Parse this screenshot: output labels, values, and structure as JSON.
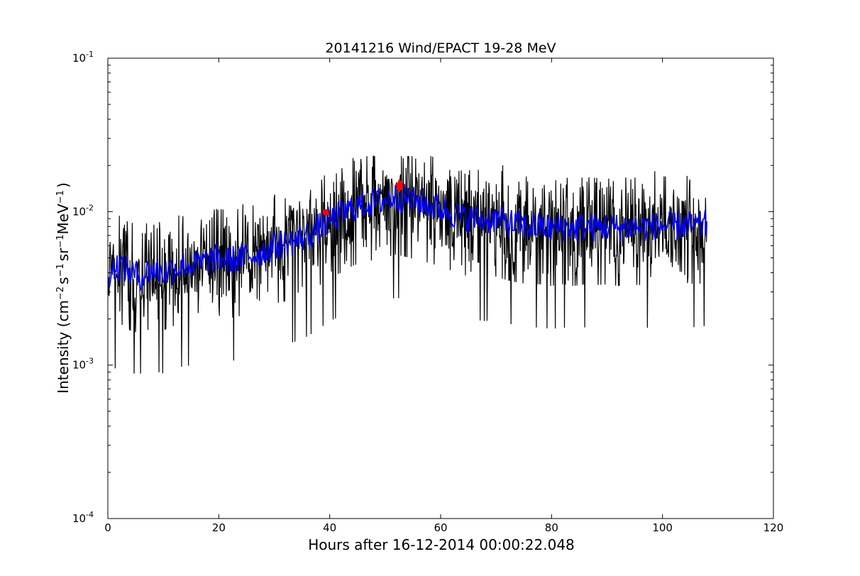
{
  "chart_data": {
    "type": "line",
    "title": "20141216 Wind/EPACT 19-28 MeV",
    "xlabel": "Hours after 16-12-2014 00:00:22.048",
    "ylabel": {
      "prefix": "Intensity (cm",
      "exp1": "−2",
      "s": "s",
      "exp2": "−1",
      "sr": "sr",
      "exp3": "−1",
      "mev": "MeV",
      "exp4": "−1",
      "suffix": ")"
    },
    "xlim": [
      0,
      120
    ],
    "ylim": [
      0.0001,
      0.1
    ],
    "yscale": "log",
    "grid": false,
    "x_ticks": [
      {
        "value": 0,
        "label": "0"
      },
      {
        "value": 20,
        "label": "20"
      },
      {
        "value": 40,
        "label": "40"
      },
      {
        "value": 60,
        "label": "60"
      },
      {
        "value": 80,
        "label": "80"
      },
      {
        "value": 100,
        "label": "100"
      },
      {
        "value": 120,
        "label": "120"
      }
    ],
    "y_ticks": [
      {
        "value": 0.0001,
        "base": "10",
        "exp": "-4"
      },
      {
        "value": 0.001,
        "base": "10",
        "exp": "-3"
      },
      {
        "value": 0.01,
        "base": "10",
        "exp": "-2"
      },
      {
        "value": 0.1,
        "base": "10",
        "exp": "-1"
      }
    ],
    "series": [
      {
        "color": "#000000",
        "style": "noisy raw intensity",
        "x": [
          0,
          2,
          4,
          6,
          8,
          10,
          12,
          14,
          16,
          18,
          20,
          22,
          24,
          26,
          28,
          30,
          32,
          34,
          36,
          38,
          40,
          42,
          44,
          46,
          48,
          50,
          52,
          54,
          56,
          58,
          60,
          62,
          64,
          66,
          68,
          70,
          72,
          74,
          76,
          78,
          80,
          82,
          84,
          86,
          88,
          90,
          92,
          94,
          96,
          98,
          100,
          102,
          104,
          106,
          108
        ],
        "y": [
          0.004,
          0.0045,
          0.004,
          0.0038,
          0.0042,
          0.004,
          0.0043,
          0.0045,
          0.0045,
          0.0048,
          0.005,
          0.0048,
          0.005,
          0.0052,
          0.0055,
          0.006,
          0.0062,
          0.0065,
          0.007,
          0.0078,
          0.0088,
          0.0095,
          0.0105,
          0.0112,
          0.0115,
          0.012,
          0.0125,
          0.012,
          0.0115,
          0.011,
          0.0105,
          0.0098,
          0.0092,
          0.009,
          0.0088,
          0.009,
          0.0085,
          0.0082,
          0.008,
          0.008,
          0.0078,
          0.008,
          0.0078,
          0.008,
          0.0079,
          0.008,
          0.0078,
          0.008,
          0.0079,
          0.008,
          0.0081,
          0.008,
          0.0082,
          0.008,
          0.0082
        ],
        "min_y": 0.00088,
        "max_y": 0.023
      },
      {
        "color": "#0000ff",
        "style": "smoothed intensity",
        "x": [
          0,
          2,
          4,
          6,
          8,
          10,
          12,
          14,
          16,
          18,
          20,
          22,
          24,
          26,
          28,
          30,
          32,
          34,
          36,
          38,
          40,
          42,
          44,
          46,
          48,
          50,
          52,
          54,
          56,
          58,
          60,
          62,
          64,
          66,
          68,
          70,
          72,
          74,
          76,
          78,
          80,
          82,
          84,
          86,
          88,
          90,
          92,
          94,
          96,
          98,
          100,
          102,
          104,
          106,
          108
        ],
        "y": [
          0.004,
          0.0045,
          0.004,
          0.0038,
          0.0042,
          0.004,
          0.0043,
          0.0045,
          0.0045,
          0.0048,
          0.005,
          0.0048,
          0.005,
          0.0052,
          0.0055,
          0.006,
          0.0062,
          0.0065,
          0.007,
          0.0078,
          0.0088,
          0.0095,
          0.0105,
          0.0112,
          0.0115,
          0.012,
          0.0125,
          0.012,
          0.0115,
          0.011,
          0.0105,
          0.0098,
          0.0092,
          0.009,
          0.0088,
          0.009,
          0.0085,
          0.0082,
          0.008,
          0.008,
          0.0078,
          0.008,
          0.0078,
          0.008,
          0.0079,
          0.008,
          0.0078,
          0.008,
          0.0079,
          0.008,
          0.0081,
          0.008,
          0.0082,
          0.008,
          0.0082
        ]
      }
    ],
    "markers": [
      {
        "shape": "circle",
        "x": 39.3,
        "y": 0.0099,
        "color": "#ff0000"
      },
      {
        "shape": "diamond",
        "x": 52.6,
        "y": 0.0148,
        "color": "#ff0000"
      }
    ]
  }
}
